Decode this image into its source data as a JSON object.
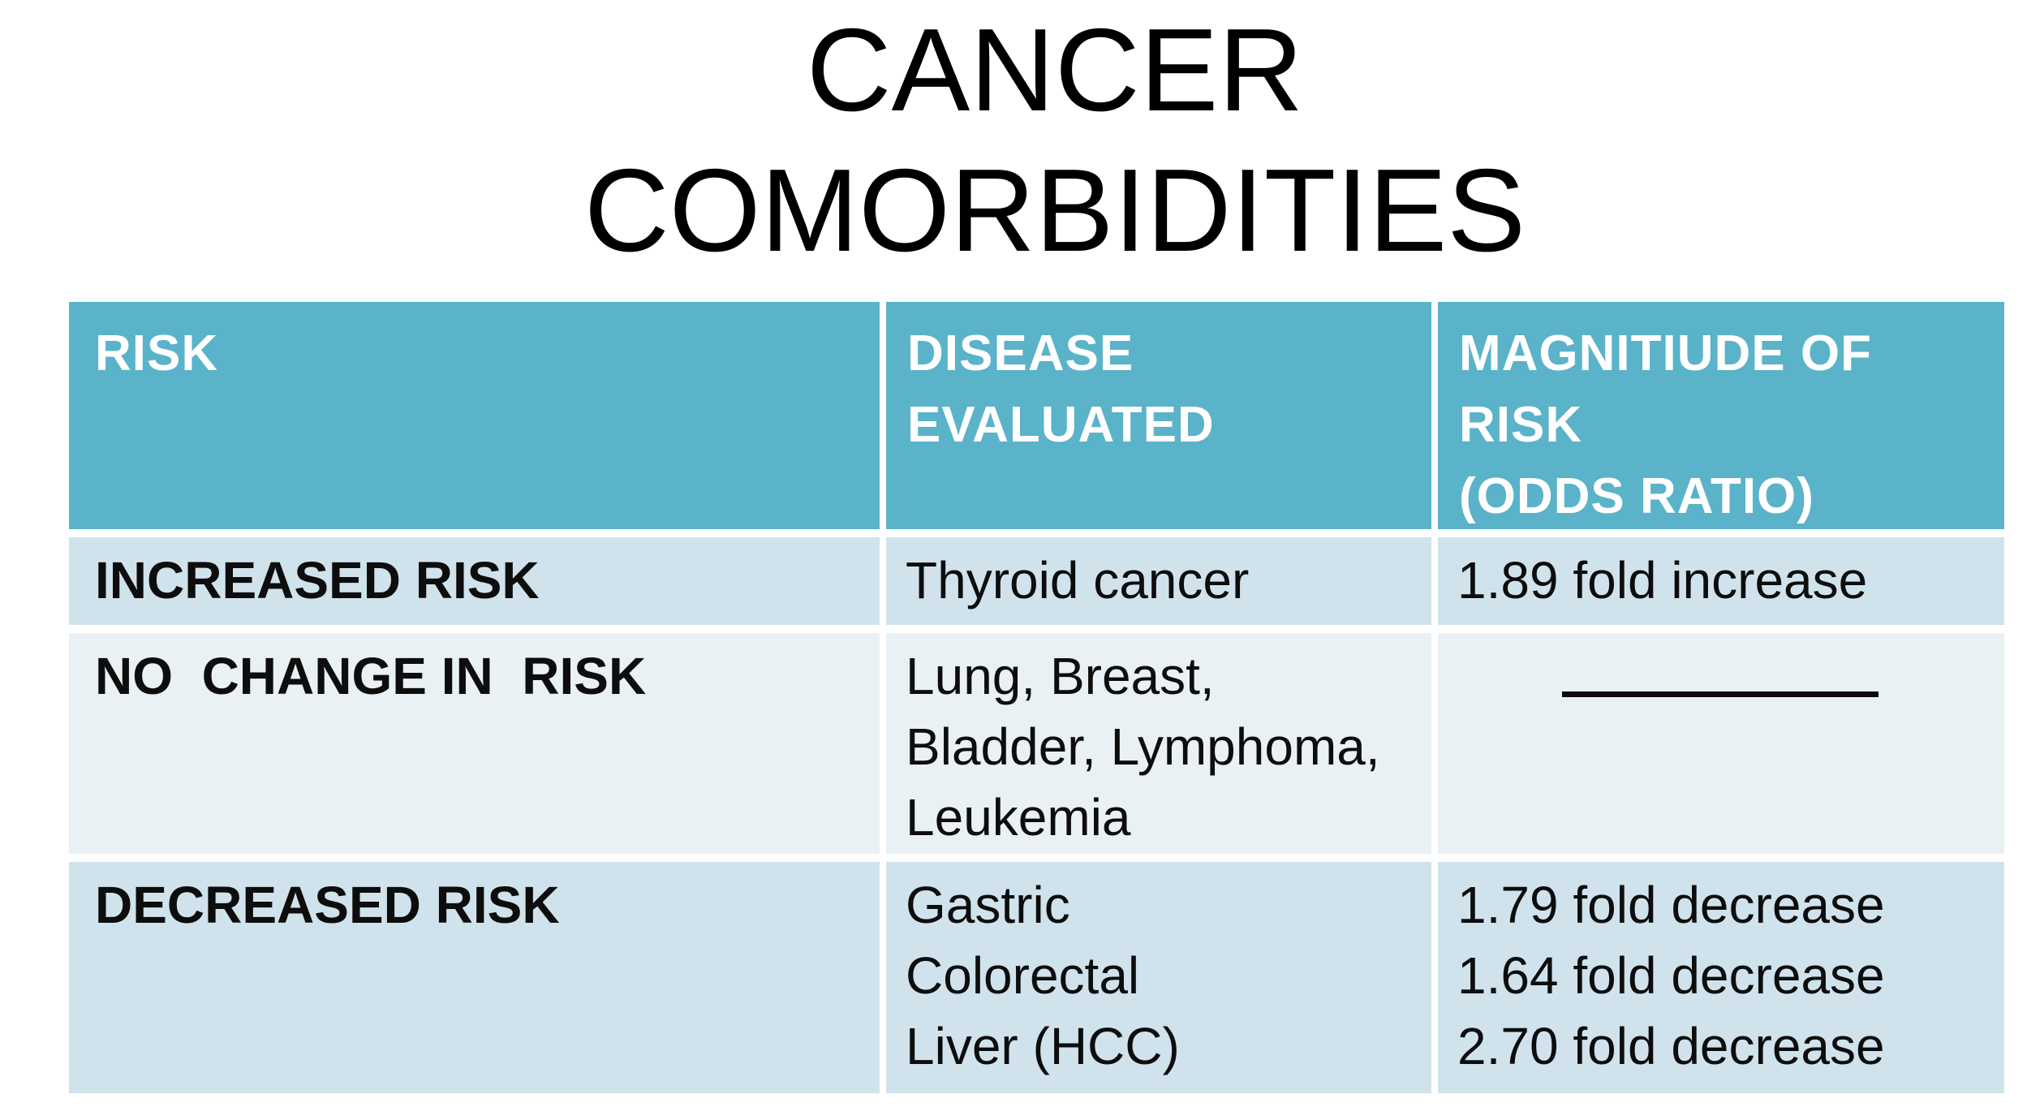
{
  "page": {
    "title": "CANCER\nCOMORBIDITIES"
  },
  "colors": {
    "header_bg": "#5AB3C9",
    "header_text": "#FFFFFF",
    "row_odd_bg": "#D0E3EC",
    "row_even_bg": "#EAF1F5",
    "body_text": "#0D0D0D"
  },
  "table": {
    "headers": {
      "risk": "RISK",
      "disease": "DISEASE\nEVALUATED",
      "magnitude": "MAGNITIUDE OF\nRISK\n(ODDS RATIO)"
    },
    "rows": [
      {
        "risk": "INCREASED RISK",
        "disease": "Thyroid cancer",
        "magnitude": "1.89 fold increase"
      },
      {
        "risk": "NO  CHANGE IN  RISK",
        "disease": "Lung, Breast,\nBladder, Lymphoma,\nLeukemia",
        "magnitude": ""
      },
      {
        "risk": "DECREASED RISK",
        "disease": "Gastric\nColorectal\nLiver (HCC)",
        "magnitude": "1.79 fold decrease\n1.64 fold decrease\n2.70 fold decrease"
      }
    ]
  }
}
